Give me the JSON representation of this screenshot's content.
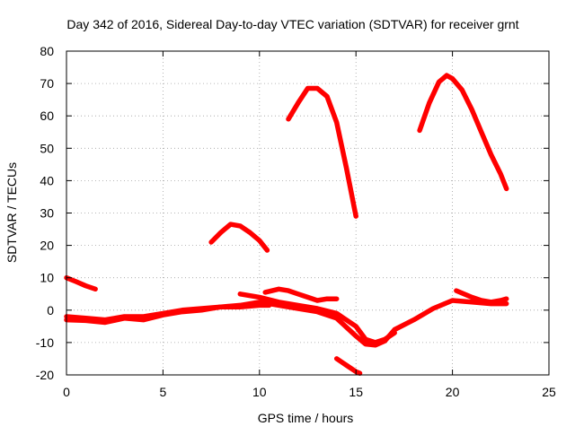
{
  "chart_data": {
    "type": "line",
    "title": "Day 342 of 2016, Sidereal Day-to-day VTEC variation (SDTVAR) for receiver grnt",
    "xlabel": "GPS time / hours",
    "ylabel": "SDTVAR / TECUs",
    "xlim": [
      0,
      25
    ],
    "ylim": [
      -20,
      80
    ],
    "xticks": [
      0,
      5,
      10,
      15,
      20,
      25
    ],
    "yticks": [
      -20,
      -10,
      0,
      10,
      20,
      30,
      40,
      50,
      60,
      70,
      80
    ],
    "xtick_labels": [
      "0",
      "5",
      "10",
      "15",
      "20",
      "25"
    ],
    "ytick_labels": [
      "-20",
      "-10",
      "0",
      "10",
      "20",
      "30",
      "40",
      "50",
      "60",
      "70",
      "80"
    ],
    "grid": true,
    "legend": "none",
    "color": "#ff0000",
    "series": [
      {
        "name": "track-1",
        "points": [
          [
            0.0,
            10.0
          ],
          [
            0.5,
            8.8
          ],
          [
            1.0,
            7.5
          ],
          [
            1.5,
            6.5
          ]
        ]
      },
      {
        "name": "track-2",
        "points": [
          [
            0.0,
            -3.0
          ],
          [
            1.0,
            -3.2
          ],
          [
            2.0,
            -3.8
          ],
          [
            3.0,
            -2.5
          ],
          [
            4.0,
            -3.0
          ],
          [
            5.0,
            -1.5
          ],
          [
            6.0,
            -0.5
          ],
          [
            7.0,
            0.0
          ],
          [
            8.0,
            1.0
          ],
          [
            9.0,
            1.5
          ],
          [
            10.0,
            2.5
          ],
          [
            11.0,
            1.5
          ],
          [
            12.0,
            0.5
          ],
          [
            13.0,
            -0.5
          ],
          [
            14.0,
            -2.5
          ],
          [
            15.0,
            -8.0
          ],
          [
            15.5,
            -10.5
          ],
          [
            16.0,
            -10.8
          ],
          [
            16.5,
            -9.5
          ],
          [
            17.0,
            -6.0
          ],
          [
            18.0,
            -3.0
          ],
          [
            19.0,
            0.5
          ],
          [
            20.0,
            3.0
          ],
          [
            21.0,
            2.5
          ],
          [
            22.0,
            2.0
          ],
          [
            22.8,
            2.0
          ]
        ]
      },
      {
        "name": "track-3",
        "points": [
          [
            0.0,
            -2.0
          ],
          [
            1.0,
            -2.5
          ],
          [
            2.0,
            -3.0
          ],
          [
            3.0,
            -2.0
          ],
          [
            4.0,
            -2.0
          ],
          [
            5.0,
            -1.0
          ],
          [
            6.0,
            0.0
          ],
          [
            7.0,
            0.5
          ],
          [
            8.0,
            1.0
          ],
          [
            9.0,
            1.0
          ],
          [
            10.0,
            1.5
          ],
          [
            10.5,
            1.5
          ]
        ]
      },
      {
        "name": "track-4",
        "points": [
          [
            7.5,
            21.0
          ],
          [
            8.0,
            24.0
          ],
          [
            8.5,
            26.5
          ],
          [
            9.0,
            26.0
          ],
          [
            9.5,
            24.0
          ],
          [
            10.0,
            21.5
          ],
          [
            10.4,
            18.5
          ]
        ]
      },
      {
        "name": "track-5",
        "points": [
          [
            11.5,
            59.0
          ],
          [
            12.0,
            64.0
          ],
          [
            12.5,
            68.5
          ],
          [
            13.0,
            68.5
          ],
          [
            13.5,
            66.0
          ],
          [
            14.0,
            58.0
          ],
          [
            14.5,
            44.0
          ],
          [
            15.0,
            29.0
          ]
        ]
      },
      {
        "name": "track-6",
        "points": [
          [
            9.0,
            5.0
          ],
          [
            10.0,
            4.0
          ],
          [
            11.0,
            2.5
          ],
          [
            12.0,
            1.5
          ],
          [
            13.0,
            0.5
          ],
          [
            14.0,
            -1.0
          ],
          [
            15.0,
            -5.0
          ],
          [
            15.5,
            -9.0
          ],
          [
            16.0,
            -10.0
          ],
          [
            16.5,
            -9.0
          ],
          [
            17.0,
            -7.0
          ]
        ]
      },
      {
        "name": "track-7",
        "points": [
          [
            10.3,
            5.5
          ],
          [
            11.0,
            6.5
          ],
          [
            11.5,
            6.0
          ],
          [
            12.0,
            5.0
          ],
          [
            12.5,
            4.0
          ],
          [
            13.0,
            3.0
          ],
          [
            13.5,
            3.5
          ],
          [
            14.0,
            3.5
          ]
        ]
      },
      {
        "name": "track-8",
        "points": [
          [
            14.0,
            -15.0
          ],
          [
            14.5,
            -17.0
          ],
          [
            15.0,
            -19.0
          ],
          [
            15.2,
            -19.5
          ]
        ]
      },
      {
        "name": "track-9",
        "points": [
          [
            18.3,
            55.5
          ],
          [
            18.8,
            64.0
          ],
          [
            19.3,
            70.5
          ],
          [
            19.7,
            72.5
          ],
          [
            20.0,
            71.5
          ],
          [
            20.5,
            68.0
          ],
          [
            21.0,
            62.0
          ],
          [
            21.5,
            55.0
          ],
          [
            22.0,
            48.0
          ],
          [
            22.5,
            42.0
          ],
          [
            22.8,
            37.5
          ]
        ]
      },
      {
        "name": "track-10",
        "points": [
          [
            20.2,
            6.0
          ],
          [
            21.0,
            4.0
          ],
          [
            21.5,
            3.0
          ],
          [
            22.0,
            2.5
          ],
          [
            22.5,
            3.0
          ],
          [
            22.8,
            3.5
          ]
        ]
      }
    ]
  }
}
